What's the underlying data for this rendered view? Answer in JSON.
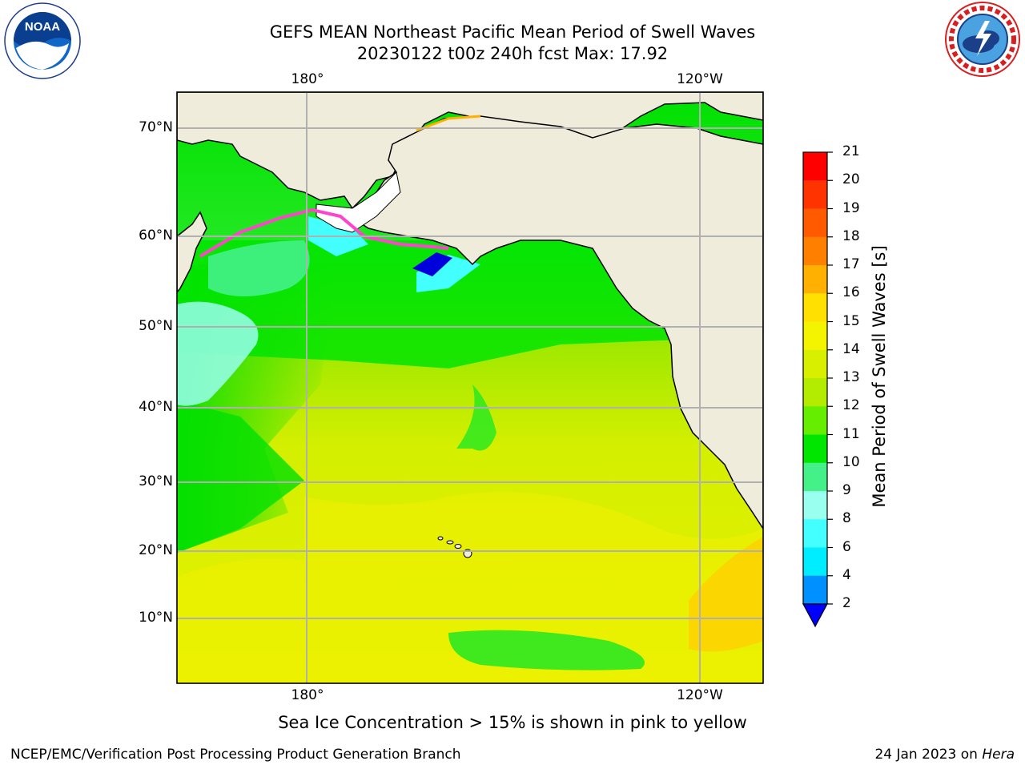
{
  "header": {
    "title_line1": "GEFS MEAN Northeast Pacific Mean Period of Swell Waves",
    "title_line2": "20230122 t00z 240h fcst   Max: 17.92"
  },
  "logos": {
    "left": "noaa-logo",
    "right": "national-weather-service-logo"
  },
  "map": {
    "lon_labels_top": [
      "180°",
      "120°W"
    ],
    "lon_labels_bottom": [
      "180°",
      "120°W"
    ],
    "lat_labels": [
      "70°N",
      "60°N",
      "50°N",
      "40°N",
      "30°N",
      "20°N",
      "10°N"
    ],
    "colors": {
      "land": "#efecdc",
      "ice_free_unknown": "#ffffff",
      "grid": "#b0b0b0"
    }
  },
  "colorbar": {
    "label": "Mean Period of Swell Waves [s]",
    "ticks": [
      "21",
      "20",
      "19",
      "18",
      "17",
      "16",
      "15",
      "14",
      "13",
      "12",
      "11",
      "10",
      "9",
      "8",
      "6",
      "4",
      "2"
    ],
    "colors": [
      "#ff0000",
      "#ff3300",
      "#ff5a00",
      "#ff8000",
      "#ffb000",
      "#ffe000",
      "#f4f400",
      "#d8f000",
      "#b4ec00",
      "#66ee00",
      "#00e600",
      "#44f088",
      "#99ffee",
      "#44ffff",
      "#00ecff",
      "#0090ff",
      "#0000ff"
    ]
  },
  "note": "Sea Ice Concentration > 15% is shown in pink to yellow",
  "footer": {
    "left": "NCEP/EMC/Verification Post Processing Product Generation Branch",
    "right_date": "24 Jan 2023 on ",
    "right_host": "Hera"
  }
}
